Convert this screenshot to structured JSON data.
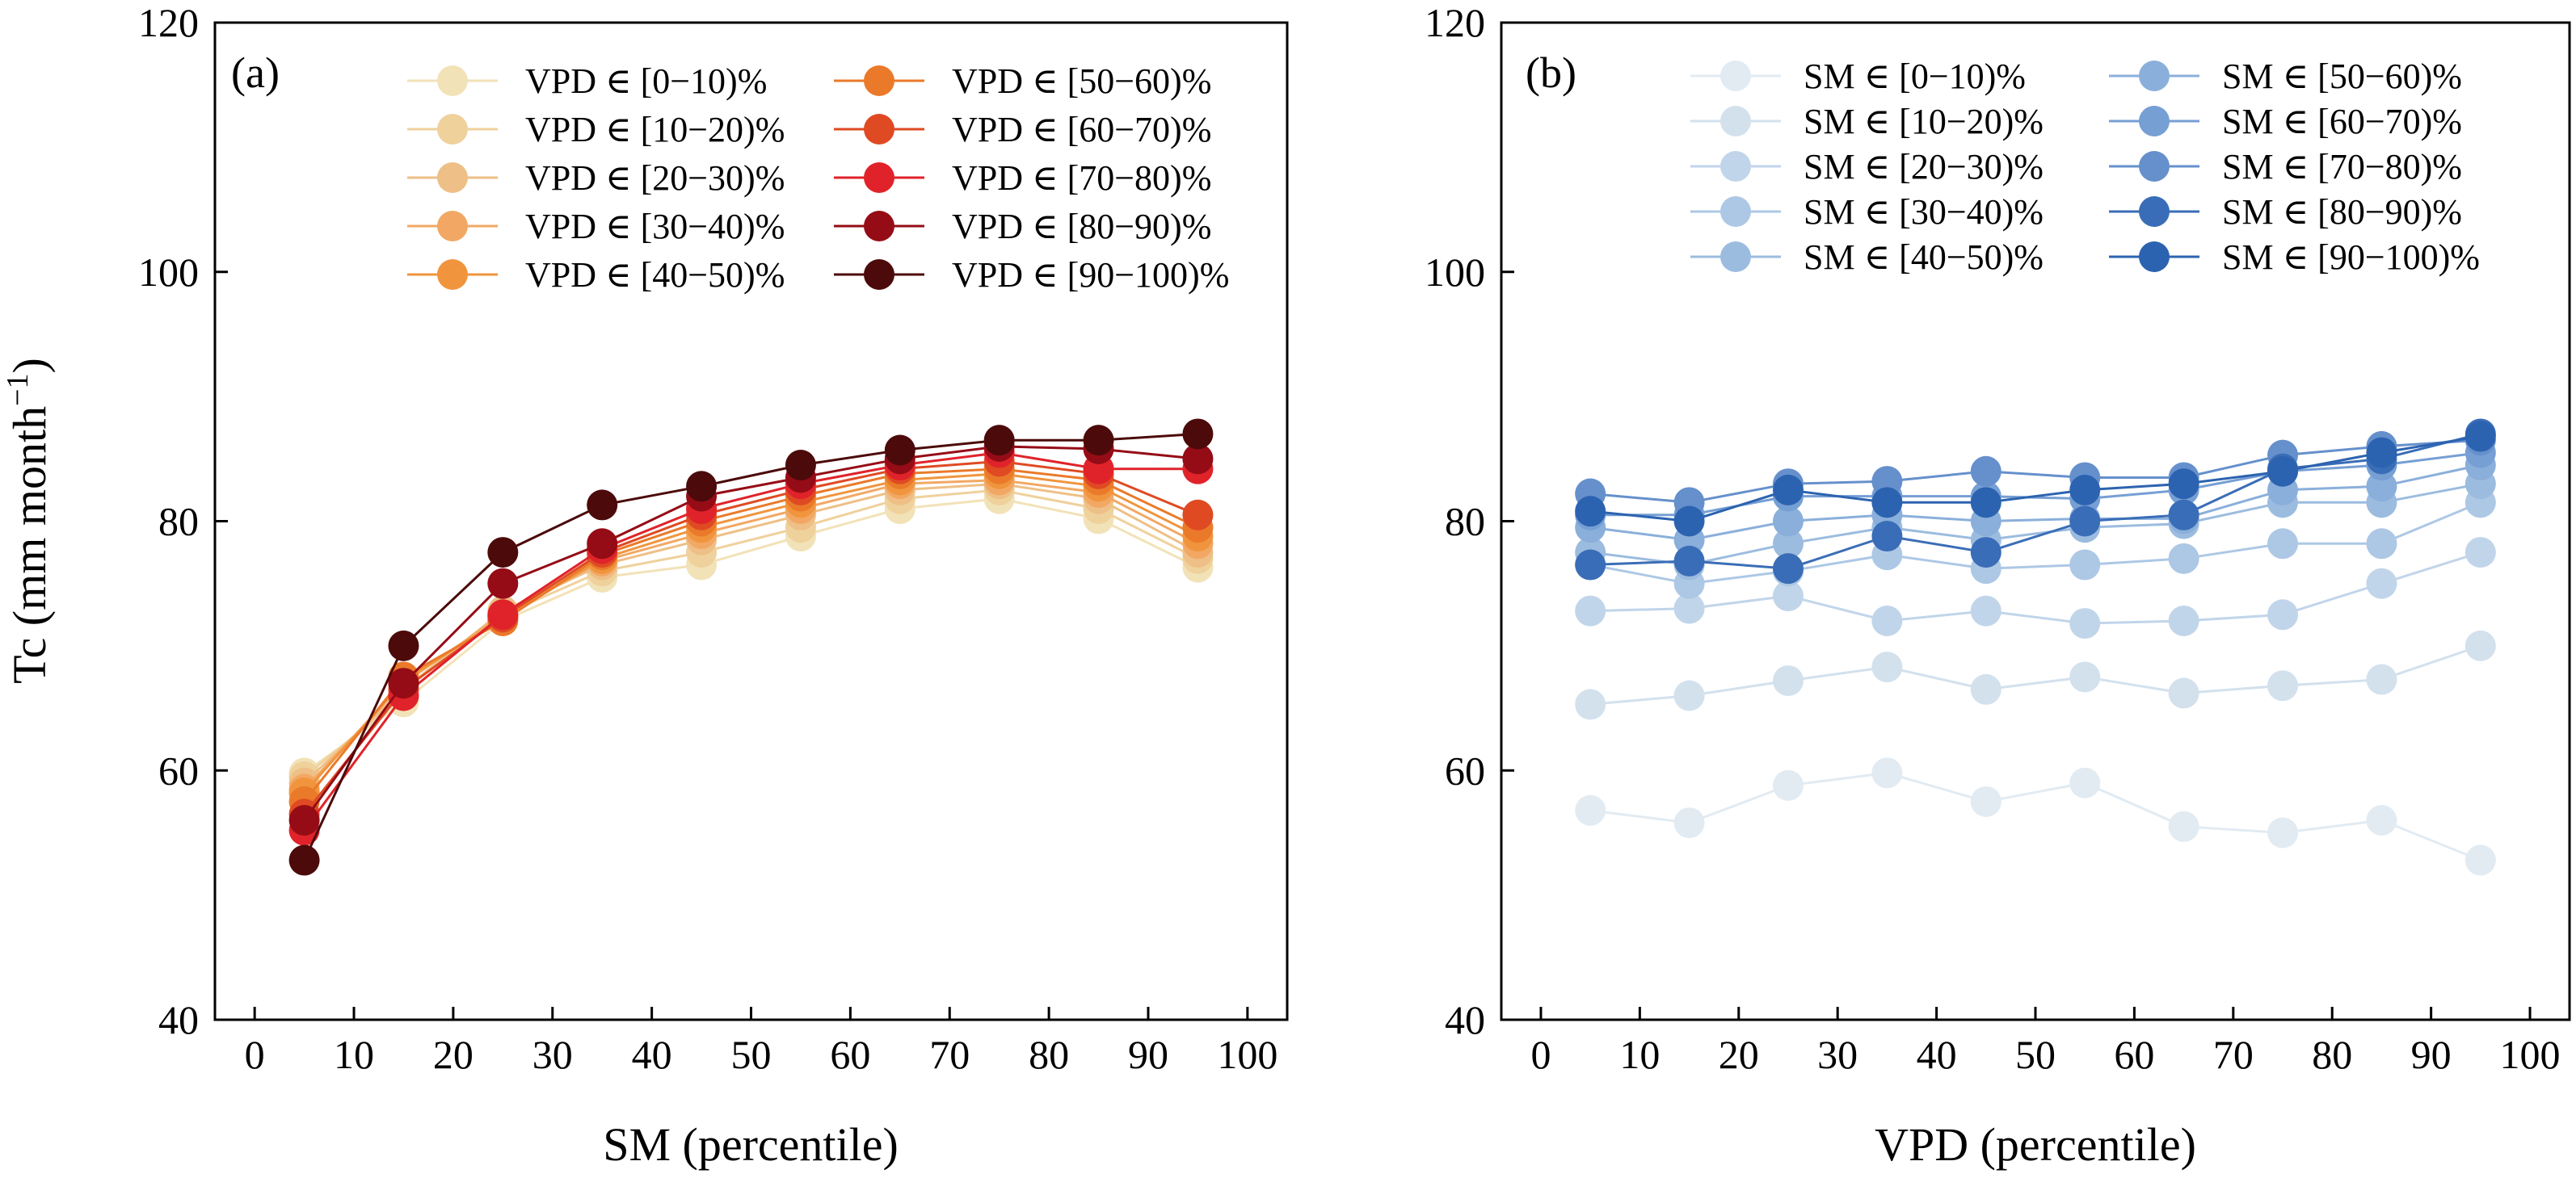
{
  "chart_data": [
    {
      "type": "line",
      "panel_label": "(a)",
      "xlabel": "SM (percentile)",
      "ylabel": "Tc (mm month",
      "ylabel_sup": "−1",
      "ylabel_close": ")",
      "xlim": [
        -4,
        104
      ],
      "ylim": [
        40,
        120
      ],
      "xticks": [
        0,
        10,
        20,
        30,
        40,
        50,
        60,
        70,
        80,
        90,
        100
      ],
      "yticks": [
        40,
        60,
        80,
        100,
        120
      ],
      "legend_position": "top-right",
      "x": [
        5,
        15,
        25,
        35,
        45,
        55,
        65,
        75,
        85,
        95
      ],
      "series": [
        {
          "name": "VPD ∈ [0−10)%",
          "color": "#f2e2b8",
          "values": [
            59.8,
            65.5,
            72.0,
            75.5,
            76.5,
            78.8,
            81.0,
            81.8,
            80.2,
            76.3
          ]
        },
        {
          "name": "VPD ∈ [10−20)%",
          "color": "#efd19c",
          "values": [
            59.5,
            66.0,
            72.5,
            76.0,
            77.5,
            79.5,
            81.8,
            82.5,
            81.0,
            77.0
          ]
        },
        {
          "name": "VPD ∈ [20−30)%",
          "color": "#eebf86",
          "values": [
            59.0,
            66.5,
            72.8,
            76.5,
            78.5,
            80.5,
            82.5,
            83.0,
            81.8,
            77.5
          ]
        },
        {
          "name": "VPD ∈ [30−40)%",
          "color": "#f2a864",
          "values": [
            58.5,
            67.0,
            72.5,
            76.8,
            79.0,
            81.0,
            83.0,
            83.3,
            82.3,
            78.2
          ]
        },
        {
          "name": "VPD ∈ [40−50)%",
          "color": "#f0953e",
          "values": [
            58.2,
            67.2,
            72.2,
            77.0,
            79.5,
            81.5,
            83.3,
            83.8,
            82.8,
            78.8
          ]
        },
        {
          "name": "VPD ∈ [50−60)%",
          "color": "#ea7a2a",
          "values": [
            57.5,
            67.5,
            72.0,
            77.3,
            80.0,
            82.0,
            83.8,
            84.2,
            83.3,
            79.5
          ]
        },
        {
          "name": "VPD ∈ [60−70)%",
          "color": "#df4a23",
          "values": [
            56.5,
            66.5,
            72.3,
            77.5,
            80.5,
            82.5,
            84.2,
            84.8,
            83.8,
            80.5
          ]
        },
        {
          "name": "VPD ∈ [70−80)%",
          "color": "#e0232a",
          "values": [
            55.2,
            66.0,
            72.5,
            77.8,
            81.0,
            83.0,
            84.5,
            85.5,
            84.2,
            84.2
          ]
        },
        {
          "name": "VPD ∈ [80−90)%",
          "color": "#950c16",
          "values": [
            56.0,
            67.0,
            75.0,
            78.2,
            82.0,
            83.5,
            85.0,
            86.0,
            85.8,
            85.0
          ]
        },
        {
          "name": "VPD ∈ [90−100)%",
          "color": "#4c0a0a",
          "values": [
            52.8,
            70.0,
            77.5,
            81.3,
            82.8,
            84.5,
            85.7,
            86.5,
            86.5,
            87.0
          ]
        }
      ]
    },
    {
      "type": "line",
      "panel_label": "(b)",
      "xlabel": "VPD (percentile)",
      "ylabel": "",
      "xlim": [
        -4,
        104
      ],
      "ylim": [
        40,
        120
      ],
      "xticks": [
        0,
        10,
        20,
        30,
        40,
        50,
        60,
        70,
        80,
        90,
        100
      ],
      "yticks": [
        40,
        60,
        80,
        100,
        120
      ],
      "legend_position": "top-right",
      "x": [
        5,
        15,
        25,
        35,
        45,
        55,
        65,
        75,
        85,
        95
      ],
      "series": [
        {
          "name": "SM ∈ [0−10)%",
          "color": "#e2ebf2",
          "values": [
            56.8,
            55.8,
            58.8,
            59.8,
            57.5,
            59.0,
            55.5,
            55.0,
            56.0,
            52.8
          ]
        },
        {
          "name": "SM ∈ [10−20)%",
          "color": "#d3e1ed",
          "values": [
            65.3,
            66.0,
            67.2,
            68.3,
            66.5,
            67.5,
            66.2,
            66.8,
            67.3,
            70.0
          ]
        },
        {
          "name": "SM ∈ [20−30)%",
          "color": "#c1d5ea",
          "values": [
            72.8,
            73.0,
            74.0,
            72.0,
            72.8,
            71.8,
            72.0,
            72.5,
            75.0,
            77.5
          ]
        },
        {
          "name": "SM ∈ [30−40)%",
          "color": "#adc8e5",
          "values": [
            76.5,
            75.0,
            76.0,
            77.3,
            76.2,
            76.5,
            77.0,
            78.2,
            78.2,
            81.5
          ]
        },
        {
          "name": "SM ∈ [40−50)%",
          "color": "#9cbcdf",
          "values": [
            77.5,
            76.5,
            78.2,
            79.5,
            78.5,
            79.5,
            79.8,
            81.5,
            81.5,
            83.0
          ]
        },
        {
          "name": "SM ∈ [50−60)%",
          "color": "#8aafdb",
          "values": [
            79.5,
            78.5,
            80.0,
            80.5,
            80.0,
            80.2,
            80.2,
            82.5,
            82.8,
            84.5
          ]
        },
        {
          "name": "SM ∈ [60−70)%",
          "color": "#769fd4",
          "values": [
            80.5,
            80.5,
            82.0,
            82.0,
            82.0,
            81.8,
            82.5,
            84.0,
            84.5,
            85.5
          ]
        },
        {
          "name": "SM ∈ [70−80)%",
          "color": "#6590cc",
          "values": [
            82.2,
            81.5,
            83.0,
            83.2,
            84.0,
            83.5,
            83.5,
            85.3,
            86.0,
            86.5
          ]
        },
        {
          "name": "SM ∈ [80−90)%",
          "color": "#3a6db7",
          "values": [
            76.5,
            76.8,
            76.2,
            78.8,
            77.5,
            80.0,
            80.5,
            84.2,
            85.0,
            87.0
          ]
        },
        {
          "name": "SM ∈ [90−100)%",
          "color": "#2c63b0",
          "values": [
            80.8,
            80.0,
            82.5,
            81.5,
            81.5,
            82.5,
            83.0,
            84.0,
            85.5,
            86.8
          ]
        }
      ]
    }
  ]
}
